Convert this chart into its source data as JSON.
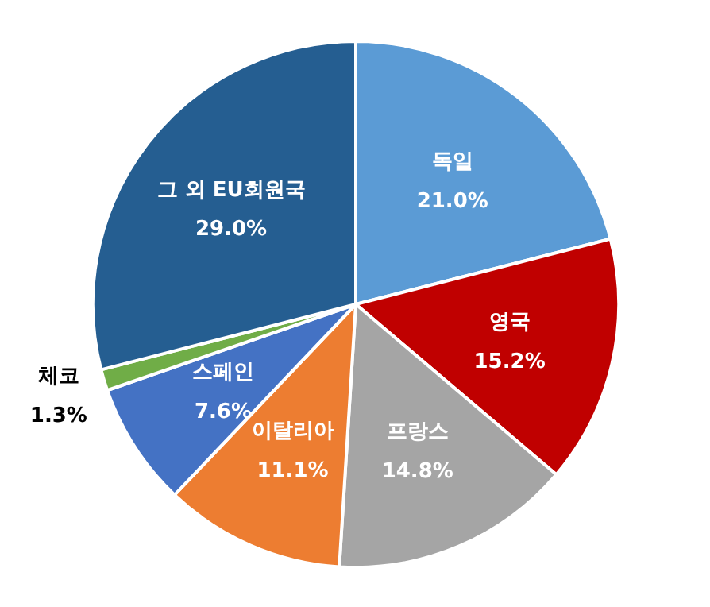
{
  "chart_data": {
    "type": "pie",
    "categories": [
      "독일",
      "영국",
      "프랑스",
      "이탈리아",
      "스페인",
      "체코",
      "그 외 EU회원국"
    ],
    "values": [
      21.0,
      15.2,
      14.8,
      11.1,
      7.6,
      1.3,
      29.0
    ],
    "colors": [
      "#5b9bd5",
      "#c00000",
      "#a5a5a5",
      "#ed7d31",
      "#4472c4",
      "#70ad47",
      "#255e91"
    ],
    "value_labels": [
      "21.0%",
      "15.2%",
      "14.8%",
      "11.1%",
      "7.6%",
      "1.3%",
      "29.0%"
    ]
  }
}
